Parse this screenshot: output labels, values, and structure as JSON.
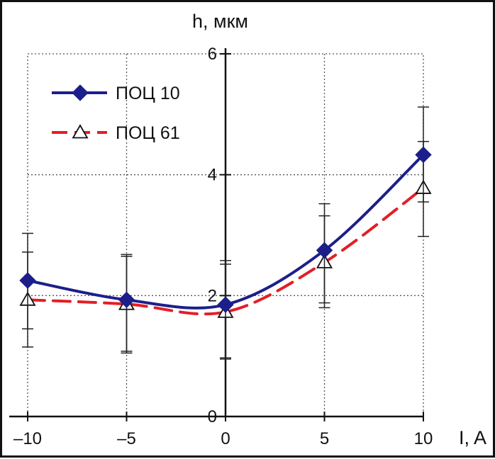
{
  "chart_data": {
    "type": "line",
    "title": "",
    "xlabel": "I, A",
    "ylabel": "h, мкм",
    "xlim": [
      -10,
      10
    ],
    "ylim": [
      0,
      6
    ],
    "x_ticks": [
      -10,
      -5,
      0,
      5,
      10
    ],
    "x_tick_labels": [
      "–10",
      "–5",
      "0",
      "5",
      "10"
    ],
    "y_ticks": [
      0,
      2,
      4,
      6
    ],
    "y_tick_labels": [
      "0",
      "2",
      "4",
      "6"
    ],
    "grid": true,
    "legend_position": "top-left",
    "x": [
      -10,
      -5,
      0,
      5,
      10
    ],
    "series": [
      {
        "name": "ПОЦ 10",
        "values": [
          2.25,
          1.93,
          1.85,
          2.75,
          4.33
        ],
        "error_low": [
          1.45,
          1.08,
          0.97,
          1.88,
          3.55
        ],
        "error_high": [
          3.03,
          2.68,
          2.58,
          3.52,
          5.12
        ],
        "color": "#1c1f8a",
        "marker": "diamond",
        "line_style": "solid"
      },
      {
        "name": "ПОЦ 61",
        "values": [
          1.93,
          1.86,
          1.73,
          2.55,
          3.78
        ],
        "error_low": [
          1.15,
          1.05,
          0.95,
          1.8,
          2.98
        ],
        "error_high": [
          2.72,
          2.65,
          2.52,
          3.32,
          4.55
        ],
        "color": "#e21f26",
        "marker": "triangle-open",
        "line_style": "dashed"
      }
    ]
  }
}
